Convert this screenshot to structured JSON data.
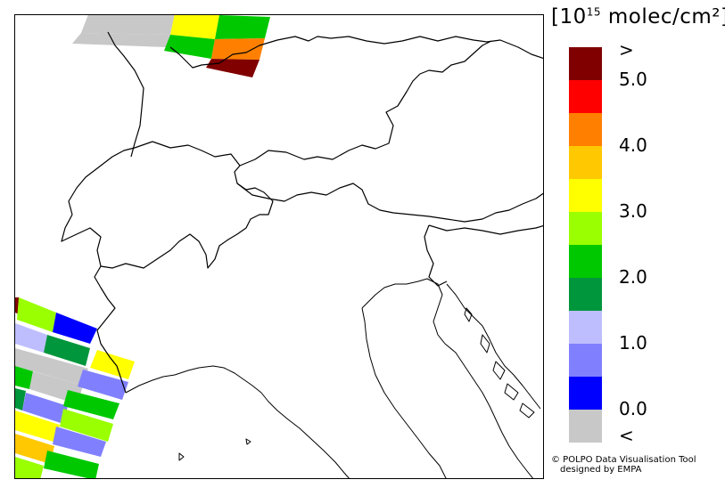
{
  "legend": {
    "title_open": "[10",
    "title_exp": "15",
    "title_rest": " molec/cm²]",
    "labels": [
      ">",
      "5.0",
      "4.0",
      "3.0",
      "2.0",
      "1.0",
      "0.0",
      "<"
    ],
    "colors": [
      "#800000",
      "#ff0000",
      "#ff8000",
      "#ffc800",
      "#ffff00",
      "#9aff00",
      "#00c800",
      "#00963c",
      "#bebeff",
      "#8080ff",
      "#0000ff",
      "#c8c8c8"
    ]
  },
  "credit": {
    "line1": "© POLPO Data Visualisation Tool",
    "line2": "designed by EMPA"
  },
  "map": {
    "region": "Alps / Northern Italy",
    "border_color": "#000000",
    "coast_color": "#000000"
  }
}
